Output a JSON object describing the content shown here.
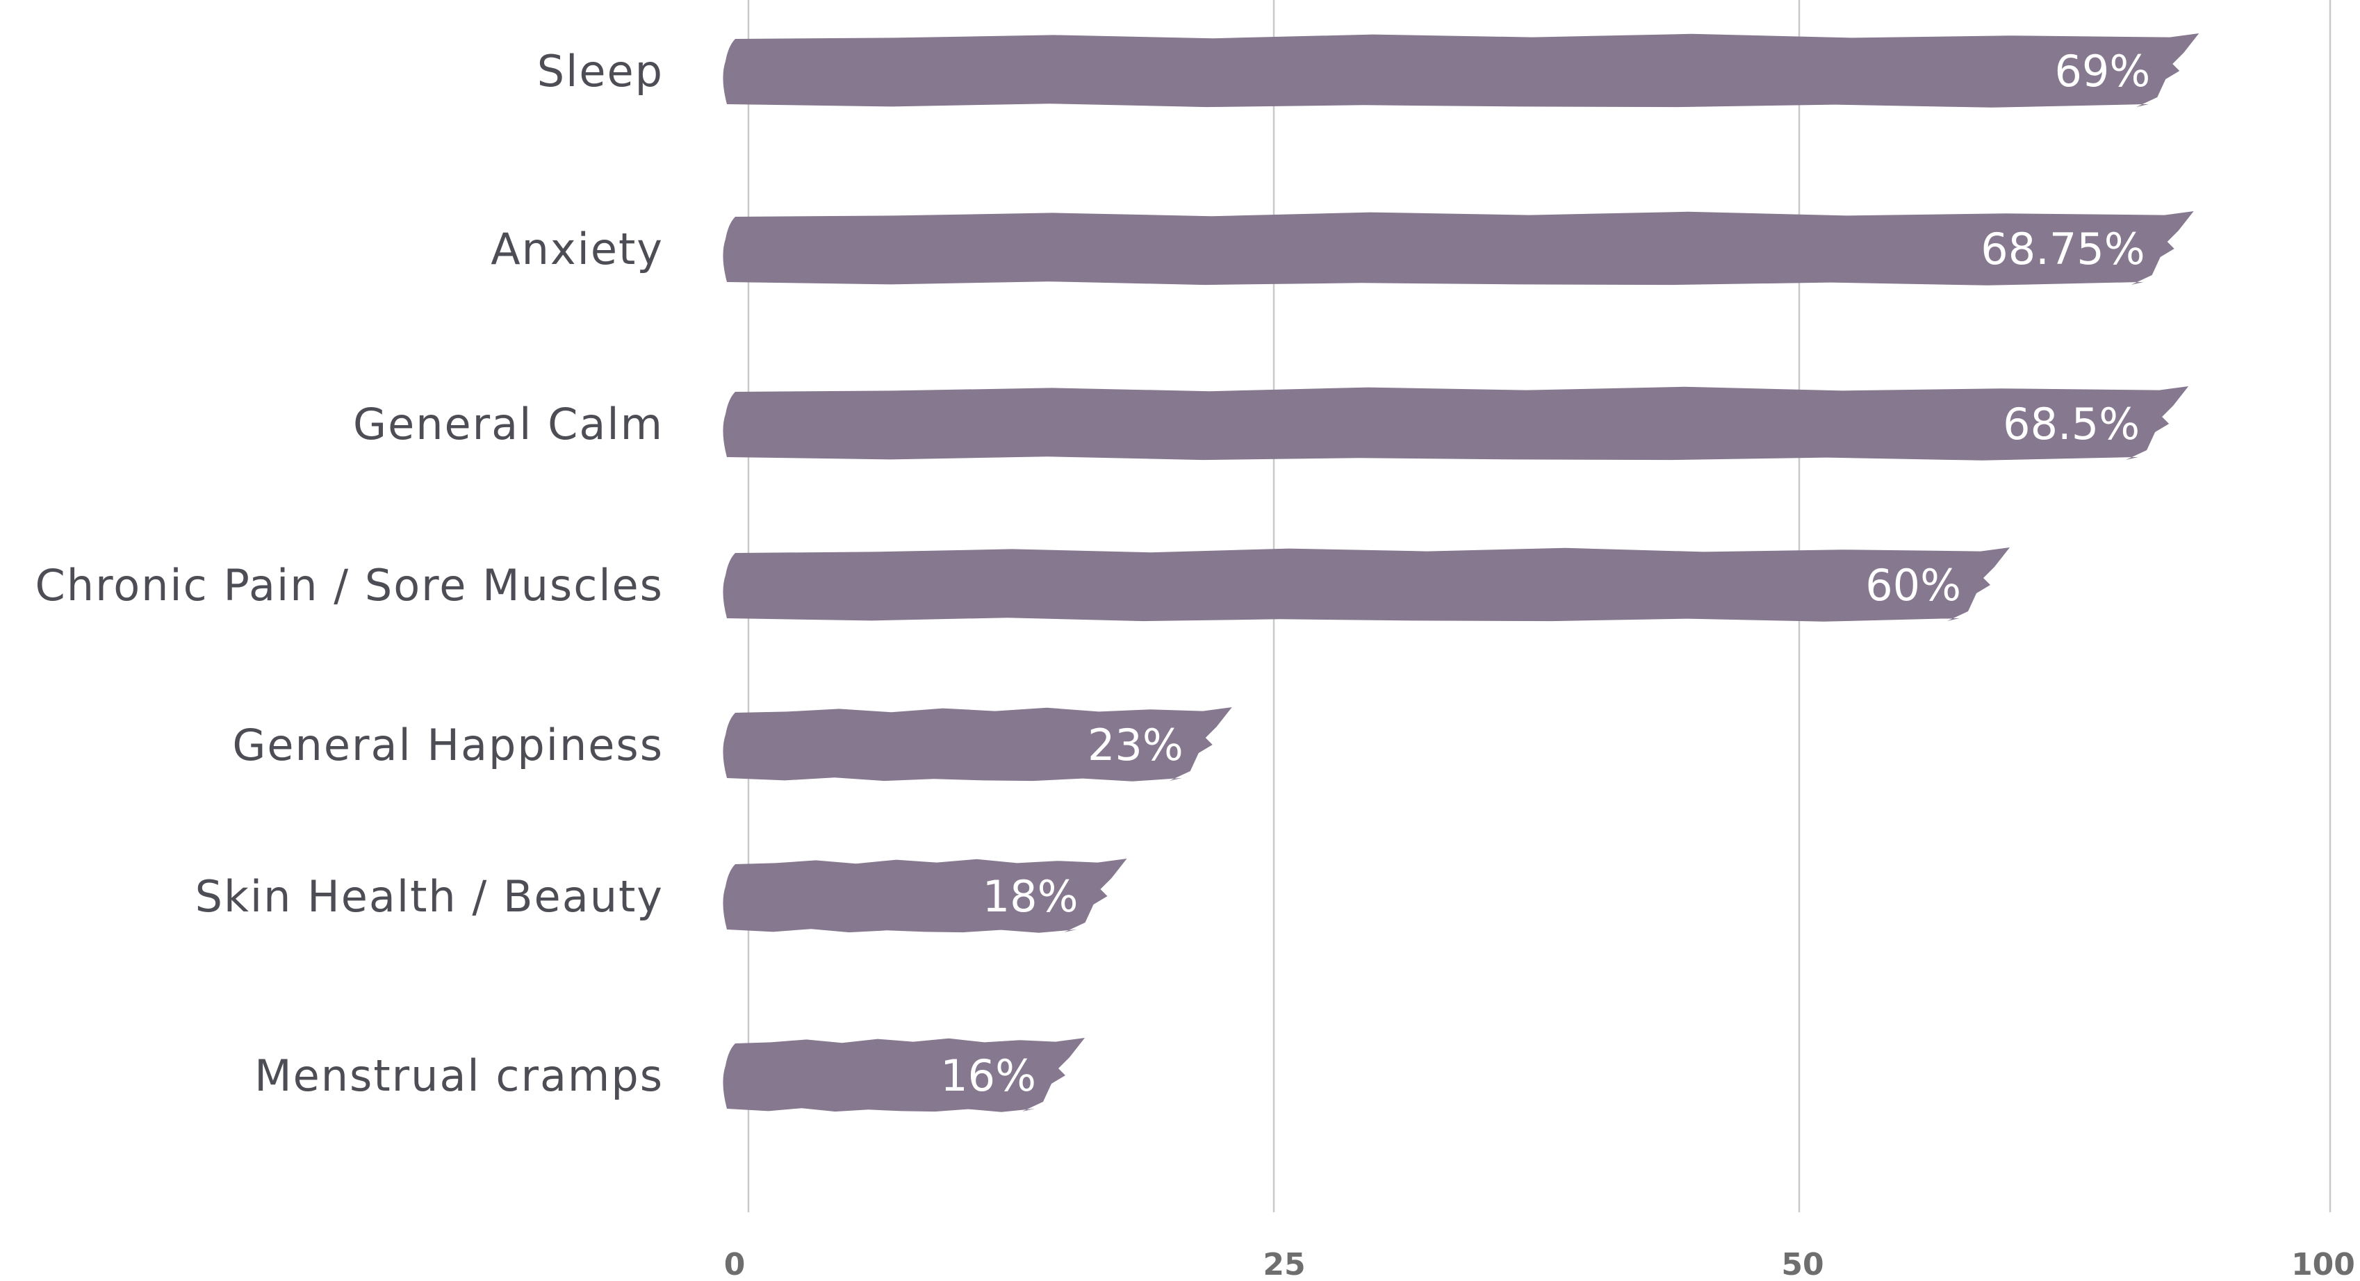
{
  "chart_data": {
    "type": "bar",
    "orientation": "horizontal",
    "categories": [
      "Sleep",
      "Anxiety",
      "General Calm",
      "Chronic Pain / Sore Muscles",
      "General Happiness",
      "Skin Health / Beauty",
      "Menstrual cramps"
    ],
    "values": [
      69,
      68.75,
      68.5,
      60,
      23,
      18,
      16
    ],
    "value_labels": [
      "69%",
      "68.75%",
      "68.5%",
      "60%",
      "23%",
      "18%",
      "16%"
    ],
    "x_ticks": [
      "0",
      "25",
      "50",
      "100"
    ],
    "title": "",
    "xlabel": "",
    "ylabel": "",
    "grid": true,
    "legend": "none",
    "bar_color": "#85788f"
  }
}
